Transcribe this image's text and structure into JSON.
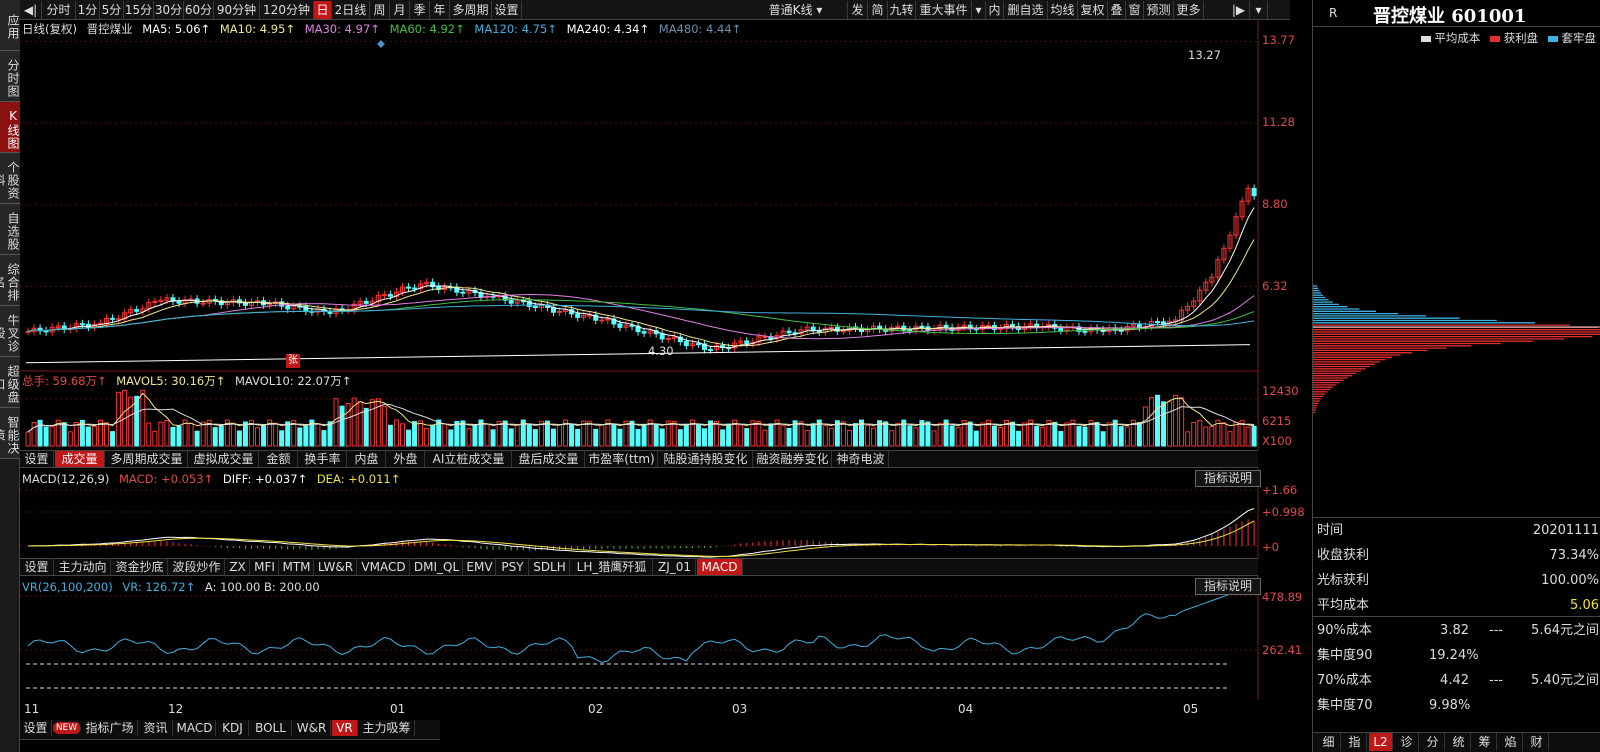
{
  "toolbar_left": [
    {
      "label": "分时"
    },
    {
      "label": "1分"
    },
    {
      "label": "5分"
    },
    {
      "label": "15分"
    },
    {
      "label": "30分"
    },
    {
      "label": "60分"
    },
    {
      "label": "90分钟"
    },
    {
      "label": "120分钟"
    },
    {
      "label": "日",
      "active": true
    },
    {
      "label": "2日线"
    },
    {
      "label": "周"
    },
    {
      "label": "月"
    },
    {
      "label": "季"
    },
    {
      "label": "年"
    },
    {
      "label": "多周期"
    },
    {
      "label": "设置"
    }
  ],
  "toolbar_right": [
    {
      "label": "普通K线 ▾"
    },
    {
      "label": "发"
    },
    {
      "label": "简"
    },
    {
      "label": "九转"
    },
    {
      "label": "重大事件"
    },
    {
      "label": "▾"
    },
    {
      "label": "内"
    },
    {
      "label": "删自选"
    },
    {
      "label": "均线"
    },
    {
      "label": "复权"
    },
    {
      "label": "叠"
    },
    {
      "label": "窗"
    },
    {
      "label": "预测"
    },
    {
      "label": "更多"
    }
  ],
  "left_tabs": [
    {
      "label": "应用"
    },
    {
      "label": "分时图"
    },
    {
      "label": "K线图",
      "active": true
    },
    {
      "label": "个股资料"
    },
    {
      "label": "自选股"
    },
    {
      "label": "综合排名"
    },
    {
      "label": "牛叉诊股"
    },
    {
      "label": "超级盘口"
    },
    {
      "label": "智能决策"
    }
  ],
  "price_legend": {
    "period": "日线(复权)",
    "stock": "晋控煤业",
    "ma5": "MA5: 5.06↑",
    "ma10": "MA10: 4.95↑",
    "ma30": "MA30: 4.97↑",
    "ma60": "MA60: 4.92↑",
    "ma120": "MA120: 4.75↑",
    "ma240": "MA240: 4.34↑",
    "ma480": "MA480: 4.44↑"
  },
  "price_axis": [
    "13.77",
    "11.28",
    "8.80",
    "6.32"
  ],
  "price_annotations": {
    "high": "13.27",
    "low": "4.30",
    "marker": "张"
  },
  "vol_legend": {
    "total": "总手: 59.68万↑",
    "mavol5": "MAVOL5: 30.16万↑",
    "mavol10": "MAVOL10: 22.07万↑"
  },
  "vol_axis": [
    "12430",
    "6215",
    "X100"
  ],
  "vol_tabs": [
    {
      "label": "设置"
    },
    {
      "label": "成交量",
      "active": true
    },
    {
      "label": "多周期成交量"
    },
    {
      "label": "虚拟成交量"
    },
    {
      "label": "金额"
    },
    {
      "label": "换手率"
    },
    {
      "label": "内盘"
    },
    {
      "label": "外盘"
    },
    {
      "label": "AI立桩成交量"
    },
    {
      "label": "盘后成交量"
    },
    {
      "label": "市盈率(ttm)"
    },
    {
      "label": "陆股通持股变化"
    },
    {
      "label": "融资融券变化"
    },
    {
      "label": "神奇电波"
    }
  ],
  "macd_legend": {
    "name": "MACD(12,26,9)",
    "macd": "MACD: +0.053↑",
    "diff": "DIFF: +0.037↑",
    "dea": "DEA: +0.011↑"
  },
  "macd_axis": [
    "+1.66",
    "+0.998",
    "+0"
  ],
  "help_label": "指标说明",
  "ind_tabs": [
    {
      "label": "设置"
    },
    {
      "label": "主力动向"
    },
    {
      "label": "资金抄底"
    },
    {
      "label": "波段炒作"
    },
    {
      "label": "ZX"
    },
    {
      "label": "MFI"
    },
    {
      "label": "MTM"
    },
    {
      "label": "LW&R"
    },
    {
      "label": "VMACD"
    },
    {
      "label": "DMI_QL"
    },
    {
      "label": "EMV"
    },
    {
      "label": "PSY"
    },
    {
      "label": "SDLH"
    },
    {
      "label": "LH_猎鹰歼狐"
    },
    {
      "label": "ZJ_01"
    },
    {
      "label": "MACD",
      "active": true
    }
  ],
  "vr_legend": {
    "name": "VR(26,100,200)",
    "vr": "VR: 126.72↑",
    "ab": "A: 100.00  B: 200.00"
  },
  "vr_axis": [
    "478.89",
    "262.41"
  ],
  "x_axis": [
    "11",
    "12",
    "01",
    "02",
    "03",
    "04",
    "05"
  ],
  "bottom_tabs": [
    {
      "label": "设置"
    },
    {
      "label": "NEW",
      "badge": true
    },
    {
      "label": "指标广场"
    },
    {
      "label": "资讯"
    },
    {
      "label": "MACD"
    },
    {
      "label": "KDJ"
    },
    {
      "label": "BOLL"
    },
    {
      "label": "W&R"
    },
    {
      "label": "VR",
      "active": true
    },
    {
      "label": "主力吸筹"
    }
  ],
  "right_panel": {
    "r_mark": "R",
    "title": "晋控煤业 601001",
    "legend": {
      "avg": "平均成本",
      "profit": "获利盘",
      "trapped": "套牢盘"
    },
    "stats": [
      {
        "label": "时间",
        "value": "20201111",
        "vcolor": "#dddddd"
      },
      {
        "label": "收盘获利",
        "value": "73.34%",
        "vcolor": "#dddddd"
      },
      {
        "label": "光标获利",
        "value": "100.00%",
        "vcolor": "#dddddd"
      },
      {
        "label": "平均成本",
        "value": "5.06",
        "vcolor": "#f0e040"
      }
    ],
    "ranges": [
      {
        "label": "90%成本",
        "low": "3.82",
        "sep": "---",
        "high": "5.64元之间"
      },
      {
        "label": "集中度90",
        "value": "19.24%"
      },
      {
        "label": "70%成本",
        "low": "4.42",
        "sep": "---",
        "high": "5.40元之间"
      },
      {
        "label": "集中度70",
        "value": "9.98%"
      }
    ],
    "bottom": [
      {
        "label": "细"
      },
      {
        "label": "指"
      },
      {
        "label": "L2",
        "active": true
      },
      {
        "label": "诊"
      },
      {
        "label": "分"
      },
      {
        "label": "统"
      },
      {
        "label": "筹"
      },
      {
        "label": "焰"
      },
      {
        "label": "财"
      }
    ]
  },
  "colors": {
    "up": "#ff3232",
    "down": "#54ffff",
    "ma5": "#ffffff",
    "ma10": "#f0e68c",
    "ma30": "#e080e0",
    "ma60": "#40c040",
    "ma120": "#40b0e0",
    "ma240": "#ffffff",
    "ma480": "#6a8fb0",
    "vr": "#40b0e0"
  }
}
